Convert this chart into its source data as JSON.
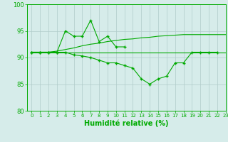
{
  "x": [
    0,
    1,
    2,
    3,
    4,
    5,
    6,
    7,
    8,
    9,
    10,
    11,
    12,
    13,
    14,
    15,
    16,
    17,
    18,
    19,
    20,
    21,
    22,
    23
  ],
  "series1": [
    91,
    91,
    91,
    91,
    95,
    94,
    94,
    97,
    93,
    94,
    92,
    92,
    null,
    null,
    null,
    null,
    null,
    null,
    null,
    null,
    null,
    null,
    null,
    null
  ],
  "series2": [
    91,
    91,
    91,
    91.2,
    91.5,
    91.8,
    92.2,
    92.5,
    92.7,
    93.0,
    93.2,
    93.4,
    93.5,
    93.7,
    93.8,
    94.0,
    94.1,
    94.2,
    94.3,
    94.3,
    94.3,
    94.3,
    94.3,
    94.3
  ],
  "series3": [
    91,
    91,
    91,
    91,
    91,
    91,
    91,
    91,
    91,
    91,
    91,
    91,
    91,
    91,
    91,
    91,
    91,
    91,
    91,
    91,
    91,
    91,
    91,
    91
  ],
  "series4": [
    91,
    91,
    91,
    91,
    91,
    90.5,
    90.3,
    90.0,
    89.5,
    89.0,
    89.0,
    88.5,
    88.0,
    86.0,
    85.0,
    86.0,
    86.5,
    89.0,
    89.0,
    91,
    91,
    91,
    91,
    null
  ],
  "xlabel": "Humidité relative (%)",
  "xlim": [
    -0.5,
    23
  ],
  "ylim": [
    80,
    100
  ],
  "yticks": [
    80,
    85,
    90,
    95,
    100
  ],
  "xticks": [
    0,
    1,
    2,
    3,
    4,
    5,
    6,
    7,
    8,
    9,
    10,
    11,
    12,
    13,
    14,
    15,
    16,
    17,
    18,
    19,
    20,
    21,
    22,
    23
  ],
  "line_color": "#00aa00",
  "bg_color": "#d6ecea",
  "grid_color": "#b0ccca"
}
